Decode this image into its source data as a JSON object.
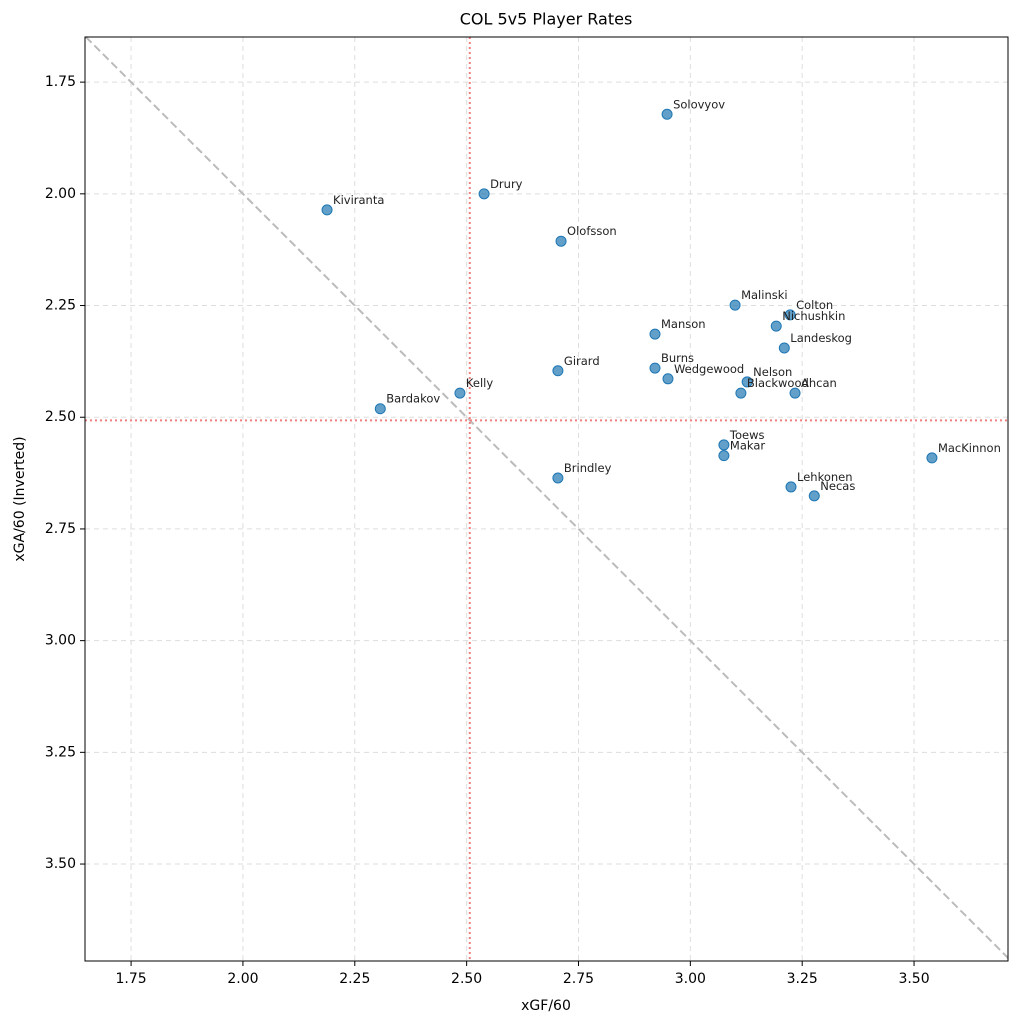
{
  "chart_data": {
    "type": "scatter",
    "title": "COL 5v5 Player Rates",
    "x_label": "xGF/60",
    "y_label": "xGA/60 (Inverted)",
    "labels": [
      "Solovyov",
      "Drury",
      "Kiviranta",
      "Olofsson",
      "Malinski",
      "Colton",
      "Nichushkin",
      "Landeskog",
      "Manson",
      "Girard",
      "Burns",
      "Wedgewood",
      "Nelson",
      "Blackwood",
      "Ahcan",
      "Kelly",
      "Bardakov",
      "Toews",
      "Makar",
      "MacKinnon",
      "Brindley",
      "Lehkonen",
      "Necas"
    ],
    "x": [
      2.948,
      2.539,
      2.188,
      2.711,
      3.1,
      3.223,
      3.192,
      3.21,
      2.921,
      2.704,
      2.921,
      2.95,
      3.127,
      3.113,
      3.234,
      2.485,
      2.307,
      3.075,
      3.075,
      3.54,
      2.704,
      3.225,
      3.277
    ],
    "values": [
      1.822,
      2.0,
      2.036,
      2.106,
      2.249,
      2.271,
      2.296,
      2.345,
      2.314,
      2.396,
      2.39,
      2.414,
      2.421,
      2.446,
      2.446,
      2.446,
      2.481,
      2.562,
      2.586,
      2.591,
      2.636,
      2.656,
      2.676
    ],
    "color": "#1f77b4",
    "xlim": [
      1.647,
      3.71
    ],
    "ylim": [
      1.649,
      3.717
    ],
    "y_inverted": true,
    "xticks": [
      1.75,
      {
        "value": 2,
        "label": "2.00"
      },
      2.25,
      {
        "value": 2.5,
        "label": "2.50"
      },
      2.75,
      {
        "value": 3,
        "label": "3.00"
      },
      3.25,
      {
        "value": 3.5,
        "label": "3.50"
      }
    ],
    "yticks": [
      1.75,
      {
        "value": 2,
        "label": "2.00"
      },
      2.25,
      {
        "value": 2.5,
        "label": "2.50"
      },
      2.75,
      {
        "value": 3,
        "label": "3.00"
      },
      3.25,
      {
        "value": 3.5,
        "label": "3.50"
      }
    ],
    "vline": 2.507,
    "hline": 2.507,
    "reference_color": "#f08080",
    "diagonal": true,
    "grid": true
  }
}
